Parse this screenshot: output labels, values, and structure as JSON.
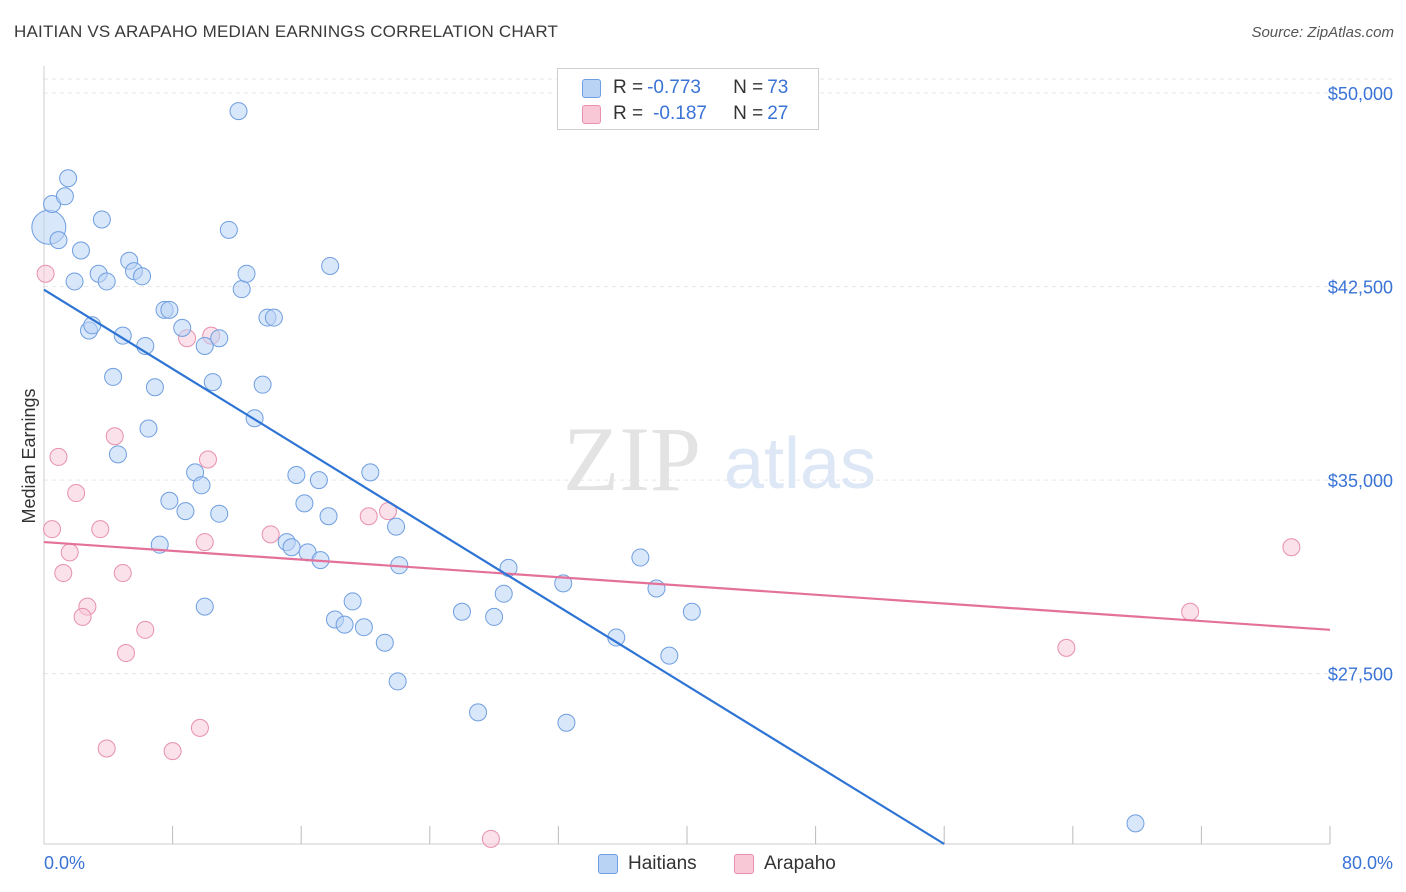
{
  "header": {
    "title": "HAITIAN VS ARAPAHO MEDIAN EARNINGS CORRELATION CHART",
    "source": "Source: ZipAtlas.com"
  },
  "watermark": {
    "zip": "ZIP",
    "atlas": "atlas"
  },
  "colors": {
    "blue_fill": "#b9d3f5",
    "blue_stroke": "#6f9ee0",
    "blue_line": "#2e74d4",
    "pink_fill": "#f8c8d7",
    "pink_stroke": "#e890ad",
    "pink_line": "#e4719a",
    "tick_label": "#3a73d6"
  },
  "legend": {
    "rows": [
      {
        "r_label": "R = ",
        "r_value": "-0.773",
        "n_label": "N = ",
        "n_value": "73"
      },
      {
        "r_label": "R = ",
        "r_value": "-0.187",
        "n_label": "N = ",
        "n_value": "27"
      }
    ],
    "bottom": [
      {
        "label": "Haitians"
      },
      {
        "label": "Arapaho"
      }
    ]
  },
  "chart_data": {
    "type": "scatter",
    "title": "HAITIAN VS ARAPAHO MEDIAN EARNINGS CORRELATION CHART",
    "xlabel": "",
    "ylabel": "Median Earnings",
    "xlim": [
      0,
      80
    ],
    "ylim": [
      20900,
      50700
    ],
    "x_tick_labels": [
      "0.0%",
      "80.0%"
    ],
    "y_ticks": [
      27500,
      35000,
      42500,
      50000
    ],
    "y_tick_labels": [
      "$27,500",
      "$35,000",
      "$42,500",
      "$50,000"
    ],
    "grid": true,
    "legend_position": "top-center",
    "series": [
      {
        "name": "Haitians",
        "r": -0.773,
        "n": 73,
        "trend": {
          "x": [
            0.0,
            56.0
          ],
          "y": [
            42380,
            20900
          ]
        },
        "points": [
          [
            0.3,
            44800
          ],
          [
            0.5,
            45700
          ],
          [
            1.3,
            46000
          ],
          [
            1.5,
            46700
          ],
          [
            0.9,
            44300
          ],
          [
            3.6,
            45100
          ],
          [
            2.3,
            43900
          ],
          [
            3.4,
            43000
          ],
          [
            3.9,
            42700
          ],
          [
            1.9,
            42700
          ],
          [
            5.3,
            43500
          ],
          [
            5.6,
            43100
          ],
          [
            6.1,
            42900
          ],
          [
            2.8,
            40800
          ],
          [
            3.0,
            41000
          ],
          [
            4.9,
            40600
          ],
          [
            6.3,
            40200
          ],
          [
            7.5,
            41600
          ],
          [
            7.8,
            41600
          ],
          [
            8.6,
            40900
          ],
          [
            10.0,
            40200
          ],
          [
            10.9,
            40500
          ],
          [
            11.5,
            44700
          ],
          [
            12.3,
            42400
          ],
          [
            12.6,
            43000
          ],
          [
            13.9,
            41300
          ],
          [
            14.3,
            41300
          ],
          [
            17.8,
            43300
          ],
          [
            12.1,
            49300
          ],
          [
            4.3,
            39000
          ],
          [
            6.9,
            38600
          ],
          [
            10.5,
            38800
          ],
          [
            13.6,
            38700
          ],
          [
            13.1,
            37400
          ],
          [
            6.5,
            37000
          ],
          [
            4.6,
            36000
          ],
          [
            9.4,
            35300
          ],
          [
            9.8,
            34800
          ],
          [
            7.8,
            34200
          ],
          [
            8.8,
            33800
          ],
          [
            10.9,
            33700
          ],
          [
            7.2,
            32500
          ],
          [
            15.7,
            35200
          ],
          [
            17.1,
            35000
          ],
          [
            16.2,
            34100
          ],
          [
            17.7,
            33600
          ],
          [
            20.3,
            35300
          ],
          [
            21.9,
            33200
          ],
          [
            15.1,
            32600
          ],
          [
            15.4,
            32400
          ],
          [
            16.4,
            32200
          ],
          [
            17.2,
            31900
          ],
          [
            22.1,
            31700
          ],
          [
            28.9,
            31600
          ],
          [
            32.3,
            31000
          ],
          [
            37.1,
            32000
          ],
          [
            38.1,
            30800
          ],
          [
            28.6,
            30600
          ],
          [
            19.2,
            30300
          ],
          [
            18.1,
            29600
          ],
          [
            18.7,
            29400
          ],
          [
            19.9,
            29300
          ],
          [
            21.2,
            28700
          ],
          [
            26.0,
            29900
          ],
          [
            28.0,
            29700
          ],
          [
            35.6,
            28900
          ],
          [
            40.3,
            29900
          ],
          [
            10.0,
            30100
          ],
          [
            38.9,
            28200
          ],
          [
            22.0,
            27200
          ],
          [
            27.0,
            26000
          ],
          [
            32.5,
            25600
          ],
          [
            67.9,
            21700
          ]
        ]
      },
      {
        "name": "Arapaho",
        "r": -0.187,
        "n": 27,
        "trend": {
          "x": [
            0.0,
            80.0
          ],
          "y": [
            32600,
            29200
          ]
        },
        "points": [
          [
            0.1,
            43000
          ],
          [
            8.9,
            40500
          ],
          [
            10.4,
            40600
          ],
          [
            4.4,
            36700
          ],
          [
            0.9,
            35900
          ],
          [
            10.2,
            35800
          ],
          [
            2.0,
            34500
          ],
          [
            0.5,
            33100
          ],
          [
            3.5,
            33100
          ],
          [
            10.0,
            32600
          ],
          [
            14.1,
            32900
          ],
          [
            20.2,
            33600
          ],
          [
            21.4,
            33800
          ],
          [
            1.6,
            32200
          ],
          [
            1.2,
            31400
          ],
          [
            4.9,
            31400
          ],
          [
            2.7,
            30100
          ],
          [
            2.4,
            29700
          ],
          [
            6.3,
            29200
          ],
          [
            5.1,
            28300
          ],
          [
            63.6,
            28500
          ],
          [
            71.3,
            29900
          ],
          [
            77.6,
            32400
          ],
          [
            9.7,
            25400
          ],
          [
            3.9,
            24600
          ],
          [
            8.0,
            24500
          ],
          [
            27.8,
            21100
          ]
        ]
      }
    ]
  }
}
